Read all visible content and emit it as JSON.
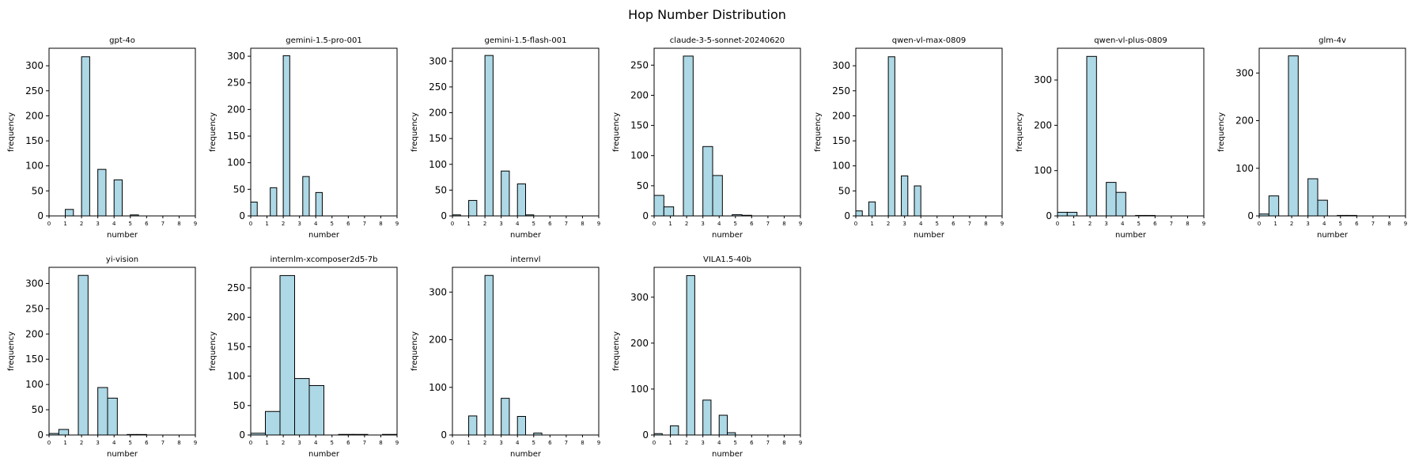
{
  "figure_title": "Hop Number Distribution",
  "bar_color": "#add8e6",
  "edge_color": "#000000",
  "chart_data": [
    {
      "type": "bar",
      "title": "gpt-4o",
      "xlabel": "number",
      "ylabel": "frequency",
      "xlim": [
        0,
        9
      ],
      "ylim": [
        0,
        335
      ],
      "yticks": [
        0,
        50,
        100,
        150,
        200,
        250,
        300
      ],
      "xticks": [
        0,
        1,
        2,
        3,
        4,
        5,
        6,
        7,
        8,
        9
      ],
      "bins": [
        {
          "x0": 0.0,
          "x1": 0.5,
          "y": 0
        },
        {
          "x0": 0.5,
          "x1": 1.0,
          "y": 0
        },
        {
          "x0": 1.0,
          "x1": 1.5,
          "y": 13
        },
        {
          "x0": 1.5,
          "x1": 2.0,
          "y": 0
        },
        {
          "x0": 2.0,
          "x1": 2.5,
          "y": 318
        },
        {
          "x0": 2.5,
          "x1": 3.0,
          "y": 0
        },
        {
          "x0": 3.0,
          "x1": 3.5,
          "y": 93
        },
        {
          "x0": 3.5,
          "x1": 4.0,
          "y": 0
        },
        {
          "x0": 4.0,
          "x1": 4.5,
          "y": 72
        },
        {
          "x0": 4.5,
          "x1": 5.0,
          "y": 0
        },
        {
          "x0": 5.0,
          "x1": 5.5,
          "y": 2
        }
      ]
    },
    {
      "type": "bar",
      "title": "gemini-1.5-pro-001",
      "xlabel": "number",
      "ylabel": "frequency",
      "xlim": [
        0,
        9
      ],
      "ylim": [
        0,
        315
      ],
      "yticks": [
        0,
        50,
        100,
        150,
        200,
        250,
        300
      ],
      "xticks": [
        0,
        1,
        2,
        3,
        4,
        5,
        6,
        7,
        8,
        9
      ],
      "bins": [
        {
          "x0": 0.0,
          "x1": 0.4,
          "y": 26
        },
        {
          "x0": 0.4,
          "x1": 0.8,
          "y": 0
        },
        {
          "x0": 0.8,
          "x1": 1.2,
          "y": 0
        },
        {
          "x0": 1.2,
          "x1": 1.6,
          "y": 53
        },
        {
          "x0": 1.6,
          "x1": 2.0,
          "y": 0
        },
        {
          "x0": 2.0,
          "x1": 2.4,
          "y": 301
        },
        {
          "x0": 2.4,
          "x1": 2.8,
          "y": 0
        },
        {
          "x0": 2.8,
          "x1": 3.2,
          "y": 0
        },
        {
          "x0": 3.2,
          "x1": 3.6,
          "y": 74
        },
        {
          "x0": 3.6,
          "x1": 4.0,
          "y": 0
        },
        {
          "x0": 4.0,
          "x1": 4.4,
          "y": 44
        }
      ]
    },
    {
      "type": "bar",
      "title": "gemini-1.5-flash-001",
      "xlabel": "number",
      "ylabel": "frequency",
      "xlim": [
        0,
        9
      ],
      "ylim": [
        0,
        325
      ],
      "yticks": [
        0,
        50,
        100,
        150,
        200,
        250,
        300
      ],
      "xticks": [
        0,
        1,
        2,
        3,
        4,
        5,
        6,
        7,
        8,
        9
      ],
      "bins": [
        {
          "x0": 0.0,
          "x1": 0.5,
          "y": 2
        },
        {
          "x0": 0.5,
          "x1": 1.0,
          "y": 0
        },
        {
          "x0": 1.0,
          "x1": 1.5,
          "y": 30
        },
        {
          "x0": 1.5,
          "x1": 2.0,
          "y": 0
        },
        {
          "x0": 2.0,
          "x1": 2.5,
          "y": 311
        },
        {
          "x0": 2.5,
          "x1": 3.0,
          "y": 0
        },
        {
          "x0": 3.0,
          "x1": 3.5,
          "y": 87
        },
        {
          "x0": 3.5,
          "x1": 4.0,
          "y": 0
        },
        {
          "x0": 4.0,
          "x1": 4.5,
          "y": 62
        },
        {
          "x0": 4.5,
          "x1": 5.0,
          "y": 2
        }
      ]
    },
    {
      "type": "bar",
      "title": "claude-3-5-sonnet-20240620",
      "xlabel": "number",
      "ylabel": "frequency",
      "xlim": [
        0,
        9
      ],
      "ylim": [
        0,
        278
      ],
      "yticks": [
        0,
        50,
        100,
        150,
        200,
        250
      ],
      "xticks": [
        0,
        1,
        2,
        3,
        4,
        5,
        6,
        7,
        8,
        9
      ],
      "bins": [
        {
          "x0": 0.0,
          "x1": 0.6,
          "y": 34
        },
        {
          "x0": 0.6,
          "x1": 1.2,
          "y": 15
        },
        {
          "x0": 1.2,
          "x1": 1.8,
          "y": 0
        },
        {
          "x0": 1.8,
          "x1": 2.4,
          "y": 265
        },
        {
          "x0": 2.4,
          "x1": 3.0,
          "y": 0
        },
        {
          "x0": 3.0,
          "x1": 3.6,
          "y": 115
        },
        {
          "x0": 3.6,
          "x1": 4.2,
          "y": 67
        },
        {
          "x0": 4.2,
          "x1": 4.8,
          "y": 0
        },
        {
          "x0": 4.8,
          "x1": 5.4,
          "y": 2
        },
        {
          "x0": 5.4,
          "x1": 6.0,
          "y": 1
        }
      ]
    },
    {
      "type": "bar",
      "title": "qwen-vl-max-0809",
      "xlabel": "number",
      "ylabel": "frequency",
      "xlim": [
        0,
        9
      ],
      "ylim": [
        0,
        335
      ],
      "yticks": [
        0,
        50,
        100,
        150,
        200,
        250,
        300
      ],
      "xticks": [
        0,
        1,
        2,
        3,
        4,
        5,
        6,
        7,
        8,
        9
      ],
      "bins": [
        {
          "x0": 0.0,
          "x1": 0.4,
          "y": 10
        },
        {
          "x0": 0.4,
          "x1": 0.8,
          "y": 0
        },
        {
          "x0": 0.8,
          "x1": 1.2,
          "y": 28
        },
        {
          "x0": 1.2,
          "x1": 1.6,
          "y": 0
        },
        {
          "x0": 1.6,
          "x1": 2.0,
          "y": 0
        },
        {
          "x0": 2.0,
          "x1": 2.4,
          "y": 318
        },
        {
          "x0": 2.4,
          "x1": 2.8,
          "y": 0
        },
        {
          "x0": 2.8,
          "x1": 3.2,
          "y": 80
        },
        {
          "x0": 3.2,
          "x1": 3.6,
          "y": 0
        },
        {
          "x0": 3.6,
          "x1": 4.0,
          "y": 60
        }
      ]
    },
    {
      "type": "bar",
      "title": "qwen-vl-plus-0809",
      "xlabel": "number",
      "ylabel": "frequency",
      "xlim": [
        0,
        9
      ],
      "ylim": [
        0,
        370
      ],
      "yticks": [
        0,
        100,
        200,
        300
      ],
      "xticks": [
        0,
        1,
        2,
        3,
        4,
        5,
        6,
        7,
        8,
        9
      ],
      "bins": [
        {
          "x0": 0.0,
          "x1": 0.6,
          "y": 8
        },
        {
          "x0": 0.6,
          "x1": 1.2,
          "y": 8
        },
        {
          "x0": 1.2,
          "x1": 1.8,
          "y": 0
        },
        {
          "x0": 1.8,
          "x1": 2.4,
          "y": 352
        },
        {
          "x0": 2.4,
          "x1": 3.0,
          "y": 0
        },
        {
          "x0": 3.0,
          "x1": 3.6,
          "y": 74
        },
        {
          "x0": 3.6,
          "x1": 4.2,
          "y": 52
        },
        {
          "x0": 4.2,
          "x1": 4.8,
          "y": 0
        },
        {
          "x0": 4.8,
          "x1": 5.4,
          "y": 1
        },
        {
          "x0": 5.4,
          "x1": 6.0,
          "y": 1
        }
      ]
    },
    {
      "type": "bar",
      "title": "glm-4v",
      "xlabel": "number",
      "ylabel": "frequency",
      "xlim": [
        0,
        9
      ],
      "ylim": [
        0,
        352
      ],
      "yticks": [
        0,
        100,
        200,
        300
      ],
      "xticks": [
        0,
        1,
        2,
        3,
        4,
        5,
        6,
        7,
        8,
        9
      ],
      "bins": [
        {
          "x0": 0.0,
          "x1": 0.6,
          "y": 4
        },
        {
          "x0": 0.6,
          "x1": 1.2,
          "y": 42
        },
        {
          "x0": 1.2,
          "x1": 1.8,
          "y": 0
        },
        {
          "x0": 1.8,
          "x1": 2.4,
          "y": 336
        },
        {
          "x0": 2.4,
          "x1": 3.0,
          "y": 0
        },
        {
          "x0": 3.0,
          "x1": 3.6,
          "y": 78
        },
        {
          "x0": 3.6,
          "x1": 4.2,
          "y": 33
        },
        {
          "x0": 4.2,
          "x1": 4.8,
          "y": 0
        },
        {
          "x0": 4.8,
          "x1": 5.4,
          "y": 1
        },
        {
          "x0": 5.4,
          "x1": 6.0,
          "y": 1
        }
      ]
    },
    {
      "type": "bar",
      "title": "yi-vision",
      "xlabel": "number",
      "ylabel": "frequency",
      "xlim": [
        0,
        9
      ],
      "ylim": [
        0,
        332
      ],
      "yticks": [
        0,
        50,
        100,
        150,
        200,
        250,
        300
      ],
      "xticks": [
        0,
        1,
        2,
        3,
        4,
        5,
        6,
        7,
        8,
        9
      ],
      "bins": [
        {
          "x0": 0.0,
          "x1": 0.6,
          "y": 3
        },
        {
          "x0": 0.6,
          "x1": 1.2,
          "y": 11
        },
        {
          "x0": 1.2,
          "x1": 1.8,
          "y": 0
        },
        {
          "x0": 1.8,
          "x1": 2.4,
          "y": 316
        },
        {
          "x0": 2.4,
          "x1": 3.0,
          "y": 0
        },
        {
          "x0": 3.0,
          "x1": 3.6,
          "y": 94
        },
        {
          "x0": 3.6,
          "x1": 4.2,
          "y": 73
        },
        {
          "x0": 4.2,
          "x1": 4.8,
          "y": 0
        },
        {
          "x0": 4.8,
          "x1": 5.4,
          "y": 1
        },
        {
          "x0": 5.4,
          "x1": 6.0,
          "y": 1
        }
      ]
    },
    {
      "type": "bar",
      "title": "internlm-xcomposer2d5-7b",
      "xlabel": "number",
      "ylabel": "frequency",
      "xlim": [
        0,
        9
      ],
      "ylim": [
        0,
        285
      ],
      "yticks": [
        0,
        50,
        100,
        150,
        200,
        250
      ],
      "xticks": [
        0,
        1,
        2,
        3,
        4,
        5,
        6,
        7,
        8,
        9
      ],
      "bins": [
        {
          "x0": 0.0,
          "x1": 0.9,
          "y": 3
        },
        {
          "x0": 0.9,
          "x1": 1.8,
          "y": 40
        },
        {
          "x0": 1.8,
          "x1": 2.7,
          "y": 271
        },
        {
          "x0": 2.7,
          "x1": 3.6,
          "y": 96
        },
        {
          "x0": 3.6,
          "x1": 4.5,
          "y": 84
        },
        {
          "x0": 4.5,
          "x1": 5.4,
          "y": 0
        },
        {
          "x0": 5.4,
          "x1": 6.3,
          "y": 1
        },
        {
          "x0": 6.3,
          "x1": 7.2,
          "y": 1
        },
        {
          "x0": 7.2,
          "x1": 8.1,
          "y": 0
        },
        {
          "x0": 8.1,
          "x1": 9.0,
          "y": 1
        }
      ]
    },
    {
      "type": "bar",
      "title": "internvl",
      "xlabel": "number",
      "ylabel": "frequency",
      "xlim": [
        0,
        9
      ],
      "ylim": [
        0,
        352
      ],
      "yticks": [
        0,
        100,
        200,
        300
      ],
      "xticks": [
        0,
        1,
        2,
        3,
        4,
        5,
        6,
        7,
        8,
        9
      ],
      "bins": [
        {
          "x0": 0.0,
          "x1": 0.5,
          "y": 0
        },
        {
          "x0": 0.5,
          "x1": 1.0,
          "y": 0
        },
        {
          "x0": 1.0,
          "x1": 1.5,
          "y": 40
        },
        {
          "x0": 1.5,
          "x1": 2.0,
          "y": 0
        },
        {
          "x0": 2.0,
          "x1": 2.5,
          "y": 335
        },
        {
          "x0": 2.5,
          "x1": 3.0,
          "y": 0
        },
        {
          "x0": 3.0,
          "x1": 3.5,
          "y": 77
        },
        {
          "x0": 3.5,
          "x1": 4.0,
          "y": 0
        },
        {
          "x0": 4.0,
          "x1": 4.5,
          "y": 39
        },
        {
          "x0": 4.5,
          "x1": 5.0,
          "y": 0
        },
        {
          "x0": 5.0,
          "x1": 5.5,
          "y": 4
        }
      ]
    },
    {
      "type": "bar",
      "title": "VILA1.5-40b",
      "xlabel": "number",
      "ylabel": "frequency",
      "xlim": [
        0,
        9
      ],
      "ylim": [
        0,
        365
      ],
      "yticks": [
        0,
        100,
        200,
        300
      ],
      "xticks": [
        0,
        1,
        2,
        3,
        4,
        5,
        6,
        7,
        8,
        9
      ],
      "bins": [
        {
          "x0": 0.0,
          "x1": 0.5,
          "y": 3
        },
        {
          "x0": 0.5,
          "x1": 1.0,
          "y": 0
        },
        {
          "x0": 1.0,
          "x1": 1.5,
          "y": 20
        },
        {
          "x0": 1.5,
          "x1": 2.0,
          "y": 0
        },
        {
          "x0": 2.0,
          "x1": 2.5,
          "y": 347
        },
        {
          "x0": 2.5,
          "x1": 3.0,
          "y": 0
        },
        {
          "x0": 3.0,
          "x1": 3.5,
          "y": 76
        },
        {
          "x0": 3.5,
          "x1": 4.0,
          "y": 0
        },
        {
          "x0": 4.0,
          "x1": 4.5,
          "y": 43
        },
        {
          "x0": 4.5,
          "x1": 5.0,
          "y": 5
        }
      ]
    }
  ]
}
